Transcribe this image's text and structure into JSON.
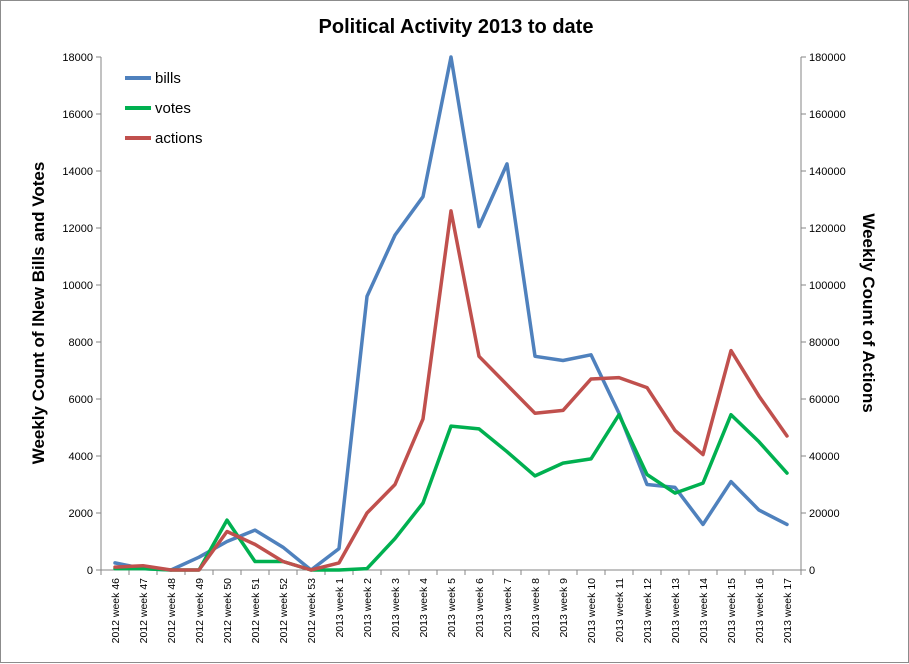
{
  "chart_data": {
    "type": "line",
    "title": "Political Activity 2013 to date",
    "ylabel_left": "Weekly Count  of lNew Bills and Votes",
    "ylabel_right": "Weekly Count of Actions",
    "ylim_left": [
      0,
      18000
    ],
    "ylim_right": [
      0,
      180000
    ],
    "yticks_left": [
      "0",
      "2000",
      "4000",
      "6000",
      "8000",
      "10000",
      "12000",
      "14000",
      "16000",
      "18000"
    ],
    "yticks_right": [
      "0",
      "20000",
      "40000",
      "60000",
      "80000",
      "100000",
      "120000",
      "140000",
      "160000",
      "180000"
    ],
    "grid": false,
    "legend_position": "top-left",
    "categories": [
      "2012 week 46",
      "2012 week 47",
      "2012 week 48",
      "2012 week 49",
      "2012 week 50",
      "2012 week 51",
      "2012 week 52",
      "2012 week 53",
      "2013 week 1",
      "2013 week 2",
      "2013 week 3",
      "2013 week 4",
      "2013 week 5",
      "2013 week 6",
      "2013 week 7",
      "2013 week 8",
      "2013 week 9",
      "2013 week 10",
      "2013 week 11",
      "2013 week 12",
      "2013 week 13",
      "2013 week 14",
      "2013 week 15",
      "2013 week 16",
      "2013 week 17"
    ],
    "series": [
      {
        "name": "bills",
        "axis": "left",
        "color": "#4f81bd",
        "values": [
          250,
          50,
          0,
          450,
          1000,
          1400,
          800,
          0,
          750,
          9600,
          11750,
          13100,
          18000,
          12050,
          14250,
          7500,
          7350,
          7550,
          5500,
          3000,
          2900,
          1600,
          3100,
          2100,
          1600
        ]
      },
      {
        "name": "votes",
        "axis": "left",
        "color": "#00b050",
        "values": [
          50,
          50,
          0,
          0,
          1750,
          300,
          300,
          0,
          0,
          50,
          1100,
          2350,
          5050,
          4950,
          4150,
          3300,
          3750,
          3900,
          5450,
          3350,
          2700,
          3050,
          5450,
          4500,
          3400
        ]
      },
      {
        "name": "actions",
        "axis": "right",
        "color": "#c0504d",
        "values": [
          1000,
          1500,
          0,
          0,
          13500,
          9000,
          3000,
          0,
          2500,
          20000,
          30000,
          53000,
          126000,
          75000,
          65000,
          55000,
          56000,
          67000,
          67500,
          64000,
          49000,
          40500,
          77000,
          61000,
          47000
        ]
      }
    ]
  }
}
